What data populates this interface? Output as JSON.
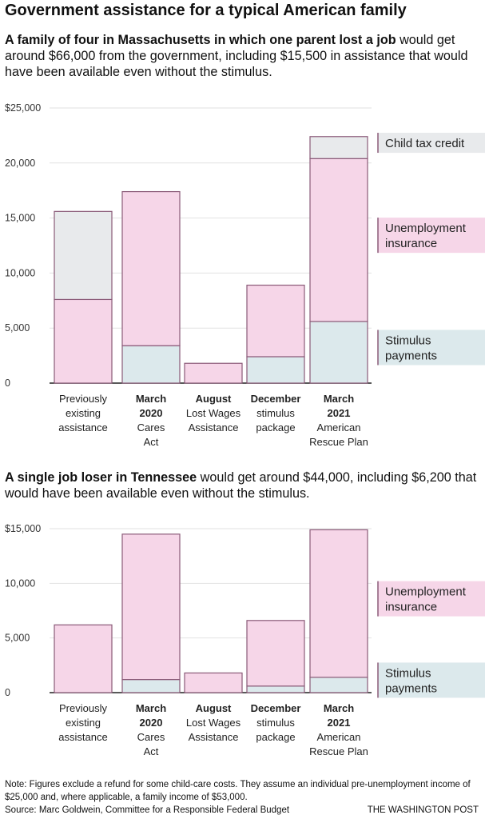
{
  "title": "Government assistance for a typical American family",
  "charts": [
    {
      "subtitle_bold": "A family of four in Massachusetts in which one parent lost a job",
      "subtitle_rest": " would get around $66,000 from the government, including $15,500 in assistance that would have been available even without the stimulus."
    },
    {
      "subtitle_bold": "A single job loser in Tennessee",
      "subtitle_rest": " would get around $44,000, including $6,200 that would have been available even without the stimulus."
    }
  ],
  "colors": {
    "stimulus": "#dce9ec",
    "unemployment": "#f6d6e8",
    "child_tax": "#e8eaec",
    "bar_outline": "#8a5a78",
    "grid": "#e2e2e2"
  },
  "chart_data": [
    {
      "type": "bar",
      "stacked": true,
      "categories": [
        [
          "Previously",
          "existing",
          "assistance"
        ],
        [
          "March",
          "2020",
          "Cares",
          "Act"
        ],
        [
          "August",
          "Lost Wages",
          "Assistance"
        ],
        [
          "December",
          "stimulus",
          "package"
        ],
        [
          "March",
          "2021",
          "American",
          "Rescue Plan"
        ]
      ],
      "category_bold_lines": [
        0,
        2,
        1,
        1,
        2
      ],
      "series": [
        {
          "name": "Stimulus payments",
          "color": "#dce9ec",
          "values": [
            0,
            3400,
            0,
            2400,
            5600
          ]
        },
        {
          "name": "Unemployment insurance",
          "color": "#f6d6e8",
          "values": [
            7600,
            14000,
            1800,
            6500,
            14800
          ]
        },
        {
          "name": "Child tax credit",
          "color": "#e8eaec",
          "values": [
            8000,
            0,
            0,
            0,
            2000
          ]
        }
      ],
      "legend": [
        {
          "lines": [
            "Child tax credit"
          ],
          "series": 2
        },
        {
          "lines": [
            "Unemployment",
            "insurance"
          ],
          "series": 1
        },
        {
          "lines": [
            "Stimulus",
            "payments"
          ],
          "series": 0
        }
      ],
      "ylim": [
        0,
        25000
      ],
      "yticks": [
        0,
        5000,
        10000,
        15000,
        20000,
        25000
      ],
      "ytick_labels": [
        "0",
        "5,000",
        "10,000",
        "15,000",
        "20,000",
        "$25,000"
      ],
      "grid": true,
      "legend_position": "right"
    },
    {
      "type": "bar",
      "stacked": true,
      "categories": [
        [
          "Previously",
          "existing",
          "assistance"
        ],
        [
          "March",
          "2020",
          "Cares",
          "Act"
        ],
        [
          "August",
          "Lost Wages",
          "Assistance"
        ],
        [
          "December",
          "stimulus",
          "package"
        ],
        [
          "March",
          "2021",
          "American",
          "Rescue Plan"
        ]
      ],
      "category_bold_lines": [
        0,
        2,
        1,
        1,
        2
      ],
      "series": [
        {
          "name": "Stimulus payments",
          "color": "#dce9ec",
          "values": [
            0,
            1200,
            0,
            600,
            1400
          ]
        },
        {
          "name": "Unemployment insurance",
          "color": "#f6d6e8",
          "values": [
            6200,
            13300,
            1800,
            6000,
            13500
          ]
        }
      ],
      "legend": [
        {
          "lines": [
            "Unemployment",
            "insurance"
          ],
          "series": 1
        },
        {
          "lines": [
            "Stimulus",
            "payments"
          ],
          "series": 0
        }
      ],
      "ylim": [
        0,
        15000
      ],
      "yticks": [
        0,
        5000,
        10000,
        15000
      ],
      "ytick_labels": [
        "0",
        "5,000",
        "10,000",
        "$15,000"
      ],
      "grid": true,
      "legend_position": "right"
    }
  ],
  "footer": {
    "note": "Note: Figures exclude a refund for some child-care costs. They assume an individual pre-unemployment income of $25,000 and, where applicable, a family income of $53,000.",
    "source": "Source: Marc Goldwein, Committee for a Responsible Federal Budget",
    "credit": "THE WASHINGTON POST"
  }
}
